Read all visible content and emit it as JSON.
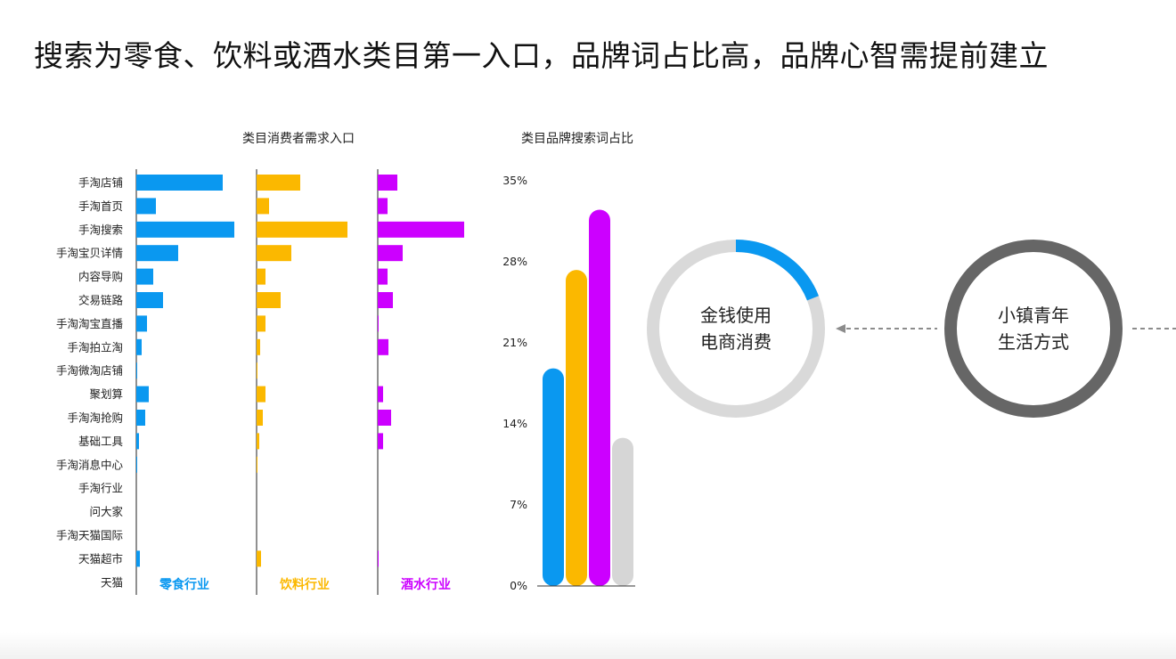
{
  "title": "搜索为零食、饮料或酒水类目第一入口，品牌词占比高，品牌心智需提前建立",
  "colors": {
    "snack": "#0a98f0",
    "drink": "#fbb800",
    "liquor": "#cc00ff",
    "other": "#d6d6d6",
    "ring_gray": "#d9d9d9",
    "ring_dark": "#666666",
    "arrow": "#8c8c8c"
  },
  "chart_data": [
    {
      "type": "bar",
      "orientation": "horizontal",
      "title": "类目消费者需求入口",
      "categories": [
        "手淘店铺",
        "手淘首页",
        "手淘搜索",
        "手淘宝贝详情",
        "内容导购",
        "交易链路",
        "手淘淘宝直播",
        "手淘拍立淘",
        "手淘微淘店铺",
        "聚划算",
        "手淘淘抢购",
        "基础工具",
        "手淘消息中心",
        "手淘行业",
        "问大家",
        "手淘天猫国际",
        "天猫超市",
        "天猫"
      ],
      "series": [
        {
          "name": "零食行业",
          "color": "#0a98f0",
          "values": [
            97,
            22,
            110,
            47,
            19,
            30,
            12,
            6,
            1,
            14,
            10,
            3,
            1,
            0,
            0,
            0,
            4,
            0
          ]
        },
        {
          "name": "饮料行业",
          "color": "#fbb800",
          "values": [
            49,
            14,
            102,
            39,
            10,
            27,
            10,
            4,
            1,
            10,
            7,
            3,
            1,
            0,
            0,
            0,
            5,
            0
          ]
        },
        {
          "name": "酒水行业",
          "color": "#cc00ff",
          "values": [
            22,
            11,
            97,
            28,
            11,
            17,
            1,
            12,
            0,
            6,
            15,
            6,
            0,
            0,
            0,
            0,
            1,
            0
          ]
        }
      ]
    },
    {
      "type": "bar",
      "title": "类目品牌搜索词占比",
      "ylim": [
        0,
        35
      ],
      "yticks": [
        "35%",
        "28%",
        "21%",
        "14%",
        "7%",
        "0%"
      ],
      "series": [
        {
          "color": "#0a98f0",
          "value": 18.8
        },
        {
          "color": "#fbb800",
          "value": 27.3
        },
        {
          "color": "#cc00ff",
          "value": 32.5
        },
        {
          "color": "#d6d6d6",
          "value": 12.8
        }
      ]
    },
    {
      "type": "pie",
      "variant": "donut",
      "label": [
        "金钱使用",
        "电商消费"
      ],
      "highlight_fraction": 0.19,
      "highlight_color": "#0a98f0"
    },
    {
      "type": "pie",
      "variant": "donut",
      "label": [
        "小镇青年",
        "生活方式"
      ],
      "highlight_fraction": 0.0
    }
  ]
}
